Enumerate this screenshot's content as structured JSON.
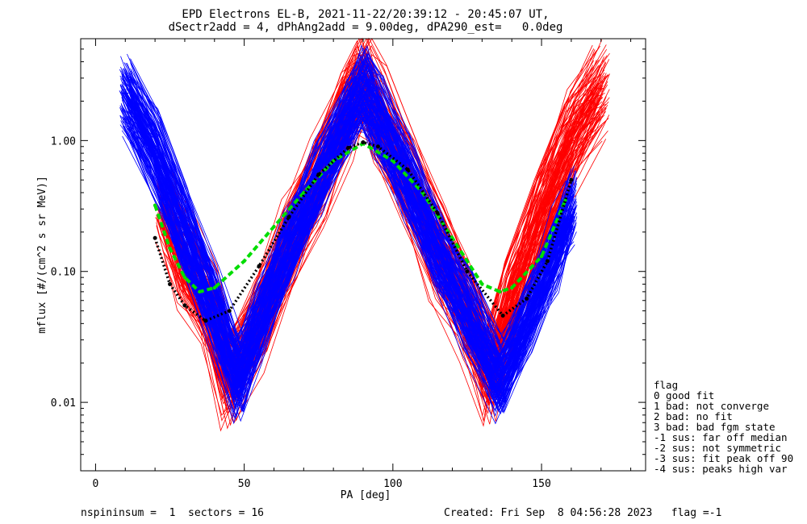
{
  "chart_data": {
    "type": "line",
    "title": "EPD Electrons EL-B, 2021-11-22/20:39:12 - 20:45:07 UT,",
    "subtitle": "dSectr2add = 4, dPhAng2add = 9.00deg, dPA290_est=   0.0deg",
    "xlabel": "PA [deg]",
    "ylabel": "mflux [#/(cm^2 s sr MeV)]",
    "xlim": [
      -5,
      185
    ],
    "ylim": [
      0.003,
      6
    ],
    "yscale": "log",
    "x_ticks": [
      "0",
      "50",
      "100",
      "150"
    ],
    "y_ticks": [
      "0.01",
      "0.10",
      "1.00"
    ],
    "grid": false,
    "colors": {
      "red": "#ff0000",
      "blue": "#0000ff",
      "green": "#00dd00",
      "black": "#000000"
    },
    "series": [
      {
        "color": "red",
        "style": "lines with plus markers",
        "x": [
          23,
          30,
          38,
          45,
          55,
          65,
          75,
          85,
          90,
          95,
          105,
          115,
          125,
          133,
          140,
          150,
          160,
          170
        ],
        "y": [
          0.3,
          0.12,
          0.05,
          0.015,
          0.04,
          0.15,
          0.5,
          1.8,
          3.0,
          1.5,
          0.5,
          0.15,
          0.05,
          0.015,
          0.06,
          0.3,
          1.0,
          2.5
        ]
      },
      {
        "color": "blue",
        "style": "lines with plus markers",
        "x": [
          10,
          20,
          30,
          40,
          48,
          55,
          65,
          75,
          85,
          90,
          95,
          105,
          115,
          125,
          136,
          145,
          155,
          160
        ],
        "y": [
          2.3,
          0.8,
          0.2,
          0.05,
          0.015,
          0.04,
          0.15,
          0.5,
          1.5,
          2.5,
          1.5,
          0.5,
          0.15,
          0.05,
          0.015,
          0.04,
          0.15,
          0.3
        ]
      },
      {
        "color": "green",
        "style": "thick dashed fit",
        "x": [
          20,
          25,
          30,
          35,
          40,
          50,
          60,
          70,
          80,
          90,
          100,
          110,
          120,
          130,
          136,
          140,
          150,
          158
        ],
        "y": [
          0.32,
          0.15,
          0.09,
          0.07,
          0.075,
          0.12,
          0.22,
          0.4,
          0.7,
          0.95,
          0.7,
          0.4,
          0.18,
          0.08,
          0.07,
          0.075,
          0.13,
          0.35
        ]
      },
      {
        "color": "black",
        "style": "dotted fit",
        "x": [
          20,
          25,
          30,
          37,
          45,
          55,
          65,
          75,
          85,
          90,
          95,
          105,
          115,
          125,
          137,
          145,
          152,
          160
        ],
        "y": [
          0.18,
          0.08,
          0.055,
          0.042,
          0.05,
          0.11,
          0.26,
          0.55,
          0.88,
          0.97,
          0.9,
          0.6,
          0.28,
          0.1,
          0.046,
          0.062,
          0.12,
          0.5
        ]
      }
    ],
    "legend": {
      "title": "flag",
      "placement": "right",
      "entries": [
        " 0 good fit",
        " 1 bad: not converge",
        " 2 bad: no fit",
        " 3 bad: bad fgm state",
        "-1 sus: far off median",
        "-2 sus: not symmetric",
        "-3 sus: fit peak off 90",
        "-4 sus: peaks high var"
      ]
    },
    "footer": {
      "left": "nspininsum =  1  sectors = 16",
      "right": "Created: Fri Sep  8 04:56:28 2023   flag =-1"
    }
  }
}
